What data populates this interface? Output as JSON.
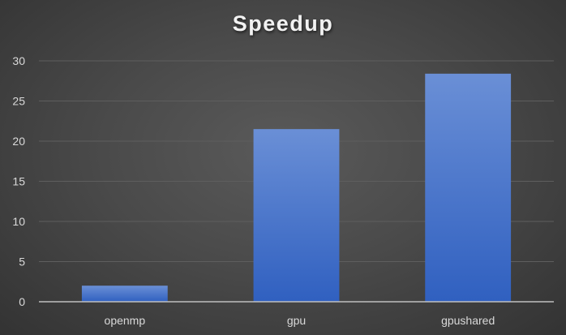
{
  "chart_data": {
    "type": "bar",
    "title": "Speedup",
    "categories": [
      "openmp",
      "gpu",
      "gpushared"
    ],
    "values": [
      2,
      21.5,
      28.4
    ],
    "xlabel": "",
    "ylabel": "",
    "ylim": [
      0,
      30
    ],
    "yticks": [
      0,
      5,
      10,
      15,
      20,
      25,
      30
    ],
    "grid": true,
    "legend": "none",
    "bar_color_top": "#6a8fd6",
    "bar_color_bottom": "#3060c0",
    "gridline_color": "#5e5e5e",
    "axis_color": "#bfbfbf"
  }
}
